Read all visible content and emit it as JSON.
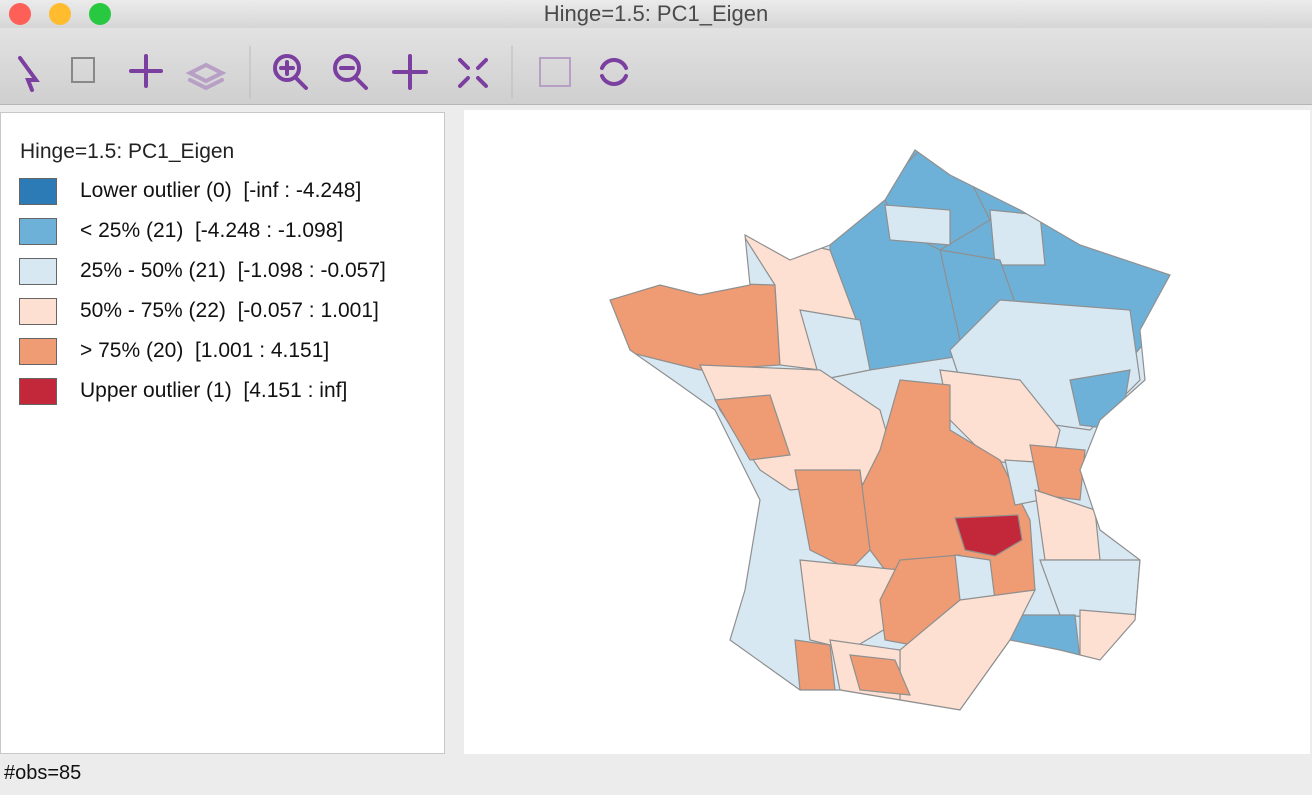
{
  "window": {
    "title": "Hinge=1.5: PC1_Eigen"
  },
  "legend": {
    "title": "Hinge=1.5: PC1_Eigen",
    "items": [
      {
        "label": "Lower outlier (0)  [-inf : -4.248]",
        "color": "#2c7bb6"
      },
      {
        "label": "< 25% (21)  [-4.248 : -1.098]",
        "color": "#6eb1d8"
      },
      {
        "label": "25% - 50% (21)  [-1.098 : -0.057]",
        "color": "#d8e8f2"
      },
      {
        "label": "50% - 75% (22)  [-0.057 : 1.001]",
        "color": "#fde0d2"
      },
      {
        "label": "> 75% (20)  [1.001 : 4.151]",
        "color": "#ef9b73"
      },
      {
        "label": "Upper outlier (1)  [4.151 : inf]",
        "color": "#c2283a"
      }
    ]
  },
  "status": {
    "text": "#obs=85"
  }
}
